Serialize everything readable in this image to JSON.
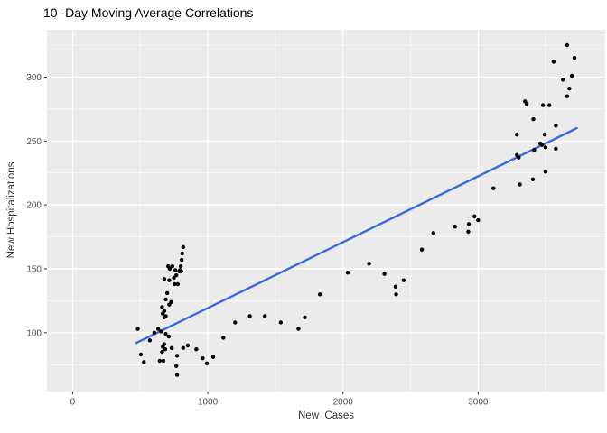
{
  "chart_data": {
    "type": "scatter",
    "title": "10 -Day Moving Average Correlations",
    "xlabel": "New  Cases",
    "ylabel": "New Hospitalizations",
    "legend": "none",
    "grid": "on",
    "xlim": [
      -190,
      3940
    ],
    "ylim": [
      54,
      337
    ],
    "x_ticks": [
      0,
      1000,
      2000,
      3000
    ],
    "x_minor_ticks": [
      500,
      1500,
      2500,
      3500
    ],
    "y_ticks": [
      100,
      150,
      200,
      250,
      300
    ],
    "y_minor_ticks": [
      75,
      125,
      175,
      225,
      275,
      325
    ],
    "colors": {
      "panel_background": "#ebebeb",
      "grid_line": "#ffffff",
      "point": "#000000",
      "trend_line": "#3a68df",
      "tick_text": "#4d4d4d",
      "axis_title_text": "#333333",
      "title_text": "#000000",
      "tick_mark": "#333333"
    },
    "trend_line": {
      "x1": 470,
      "y1": 92,
      "x2": 3730,
      "y2": 260
    },
    "points": [
      [
        482,
        103
      ],
      [
        505,
        83
      ],
      [
        527,
        77
      ],
      [
        571,
        94
      ],
      [
        604,
        100
      ],
      [
        633,
        103
      ],
      [
        655,
        101
      ],
      [
        662,
        120
      ],
      [
        678,
        117
      ],
      [
        667,
        115
      ],
      [
        689,
        113
      ],
      [
        678,
        142
      ],
      [
        715,
        141
      ],
      [
        700,
        131
      ],
      [
        689,
        126
      ],
      [
        729,
        124
      ],
      [
        715,
        122
      ],
      [
        749,
        143
      ],
      [
        755,
        138
      ],
      [
        778,
        138
      ],
      [
        718,
        150
      ],
      [
        707,
        152
      ],
      [
        738,
        152
      ],
      [
        760,
        149
      ],
      [
        793,
        149
      ],
      [
        804,
        148
      ],
      [
        789,
        148
      ],
      [
        767,
        145
      ],
      [
        800,
        152
      ],
      [
        807,
        157
      ],
      [
        811,
        162
      ],
      [
        818,
        167
      ],
      [
        678,
        112
      ],
      [
        689,
        99
      ],
      [
        711,
        97
      ],
      [
        733,
        88
      ],
      [
        678,
        91
      ],
      [
        667,
        89
      ],
      [
        685,
        87
      ],
      [
        662,
        85
      ],
      [
        644,
        78
      ],
      [
        671,
        78
      ],
      [
        773,
        82
      ],
      [
        767,
        74
      ],
      [
        773,
        67
      ],
      [
        818,
        88
      ],
      [
        852,
        90
      ],
      [
        915,
        87
      ],
      [
        962,
        80
      ],
      [
        993,
        76
      ],
      [
        1040,
        81
      ],
      [
        1115,
        96
      ],
      [
        1202,
        108
      ],
      [
        1311,
        113
      ],
      [
        1422,
        113
      ],
      [
        1540,
        108
      ],
      [
        1671,
        103
      ],
      [
        1718,
        112
      ],
      [
        1829,
        130
      ],
      [
        2035,
        147
      ],
      [
        2193,
        154
      ],
      [
        2307,
        146
      ],
      [
        2389,
        136
      ],
      [
        2393,
        130
      ],
      [
        2449,
        141
      ],
      [
        2584,
        165
      ],
      [
        2669,
        178
      ],
      [
        2829,
        183
      ],
      [
        2927,
        179
      ],
      [
        2931,
        185
      ],
      [
        2973,
        191
      ],
      [
        3000,
        188
      ],
      [
        3113,
        213
      ],
      [
        3309,
        216
      ],
      [
        3405,
        220
      ],
      [
        3498,
        226
      ],
      [
        3287,
        239
      ],
      [
        3300,
        237
      ],
      [
        3415,
        243
      ],
      [
        3460,
        248
      ],
      [
        3473,
        247
      ],
      [
        3498,
        245
      ],
      [
        3575,
        244
      ],
      [
        3287,
        255
      ],
      [
        3493,
        255
      ],
      [
        3409,
        267
      ],
      [
        3575,
        262
      ],
      [
        3347,
        281
      ],
      [
        3360,
        279
      ],
      [
        3480,
        278
      ],
      [
        3527,
        278
      ],
      [
        3658,
        285
      ],
      [
        3675,
        291
      ],
      [
        3627,
        298
      ],
      [
        3693,
        301
      ],
      [
        3558,
        312
      ],
      [
        3713,
        315
      ],
      [
        3658,
        325
      ]
    ]
  }
}
